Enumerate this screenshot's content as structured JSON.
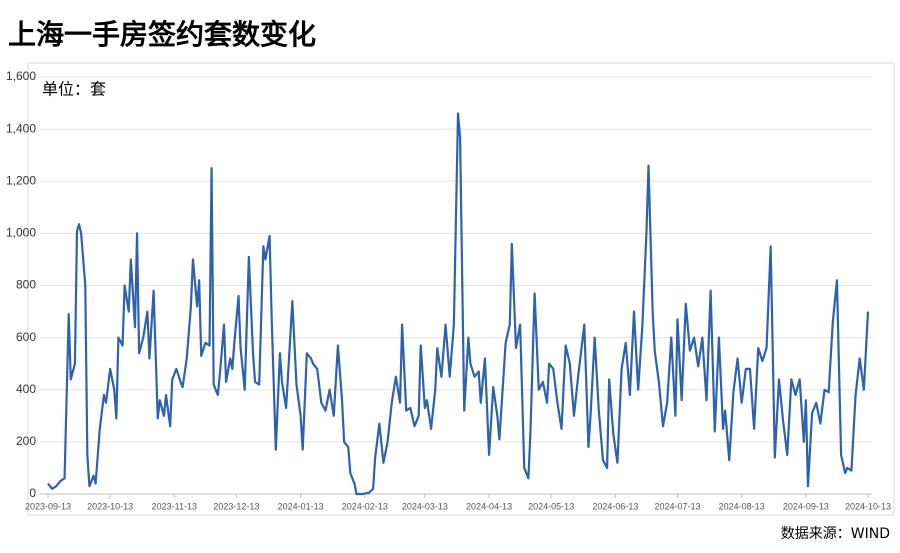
{
  "chart_data": {
    "type": "line",
    "title": "上海一手房签约套数变化",
    "unit_label": "单位：套",
    "source": "数据来源：WIND",
    "color": "#2e62ad",
    "grid": true,
    "ylim": [
      0,
      1600
    ],
    "yticks": [
      0,
      200,
      400,
      600,
      800,
      {
        "value": 1000,
        "label": "1,000"
      },
      {
        "value": 1200,
        "label": "1,200"
      },
      {
        "value": 1400,
        "label": "1,400"
      },
      {
        "value": 1600,
        "label": "1,600"
      }
    ],
    "xlim": [
      "2023-09-13",
      "2024-10-13"
    ],
    "xticks": [
      "2023-09-13",
      "2023-10-13",
      "2023-11-13",
      "2023-12-13",
      "2024-01-13",
      "2024-02-13",
      "2024-03-13",
      "2024-04-13",
      "2024-05-13",
      "2024-06-13",
      "2024-07-13",
      "2024-08-13",
      "2024-09-13",
      "2024-10-13"
    ],
    "x": [
      "2023-09-13",
      "2023-09-15",
      "2023-09-17",
      "2023-09-19",
      "2023-09-21",
      "2023-09-23",
      "2023-09-24",
      "2023-09-26",
      "2023-09-27",
      "2023-09-28",
      "2023-09-29",
      "2023-10-01",
      "2023-10-02",
      "2023-10-03",
      "2023-10-05",
      "2023-10-06",
      "2023-10-08",
      "2023-10-10",
      "2023-10-11",
      "2023-10-13",
      "2023-10-15",
      "2023-10-16",
      "2023-10-17",
      "2023-10-19",
      "2023-10-20",
      "2023-10-22",
      "2023-10-23",
      "2023-10-25",
      "2023-10-26",
      "2023-10-27",
      "2023-10-29",
      "2023-10-31",
      "2023-11-01",
      "2023-11-03",
      "2023-11-05",
      "2023-11-06",
      "2023-11-08",
      "2023-11-09",
      "2023-11-11",
      "2023-11-12",
      "2023-11-14",
      "2023-11-16",
      "2023-11-17",
      "2023-11-19",
      "2023-11-21",
      "2023-11-22",
      "2023-11-24",
      "2023-11-25",
      "2023-11-26",
      "2023-11-28",
      "2023-11-30",
      "2023-12-01",
      "2023-12-02",
      "2023-12-04",
      "2023-12-05",
      "2023-12-07",
      "2023-12-08",
      "2023-12-10",
      "2023-12-11",
      "2023-12-12",
      "2023-12-14",
      "2023-12-15",
      "2023-12-17",
      "2023-12-19",
      "2023-12-21",
      "2023-12-22",
      "2023-12-24",
      "2023-12-26",
      "2023-12-27",
      "2023-12-29",
      "2023-12-30",
      "2024-01-01",
      "2024-01-03",
      "2024-01-04",
      "2024-01-06",
      "2024-01-09",
      "2024-01-11",
      "2024-01-13",
      "2024-01-14",
      "2024-01-16",
      "2024-01-18",
      "2024-01-19",
      "2024-01-21",
      "2024-01-23",
      "2024-01-25",
      "2024-01-27",
      "2024-01-29",
      "2024-01-31",
      "2024-02-02",
      "2024-02-03",
      "2024-02-05",
      "2024-02-06",
      "2024-02-08",
      "2024-02-09",
      "2024-02-12",
      "2024-02-15",
      "2024-02-17",
      "2024-02-18",
      "2024-02-20",
      "2024-02-22",
      "2024-02-24",
      "2024-02-26",
      "2024-02-28",
      "2024-03-01",
      "2024-03-02",
      "2024-03-04",
      "2024-03-06",
      "2024-03-08",
      "2024-03-10",
      "2024-03-11",
      "2024-03-13",
      "2024-03-14",
      "2024-03-16",
      "2024-03-18",
      "2024-03-19",
      "2024-03-21",
      "2024-03-23",
      "2024-03-25",
      "2024-03-27",
      "2024-03-29",
      "2024-03-30",
      "2024-04-01",
      "2024-04-03",
      "2024-04-04",
      "2024-04-06",
      "2024-04-08",
      "2024-04-09",
      "2024-04-11",
      "2024-04-13",
      "2024-04-15",
      "2024-04-17",
      "2024-04-18",
      "2024-04-21",
      "2024-04-23",
      "2024-04-24",
      "2024-04-26",
      "2024-04-28",
      "2024-04-30",
      "2024-05-02",
      "2024-05-03",
      "2024-05-05",
      "2024-05-07",
      "2024-05-09",
      "2024-05-11",
      "2024-05-12",
      "2024-05-14",
      "2024-05-16",
      "2024-05-18",
      "2024-05-20",
      "2024-05-22",
      "2024-05-24",
      "2024-05-26",
      "2024-05-29",
      "2024-05-31",
      "2024-06-01",
      "2024-06-03",
      "2024-06-05",
      "2024-06-07",
      "2024-06-09",
      "2024-06-10",
      "2024-06-12",
      "2024-06-14",
      "2024-06-16",
      "2024-06-18",
      "2024-06-20",
      "2024-06-22",
      "2024-06-24",
      "2024-06-26",
      "2024-06-28",
      "2024-06-29",
      "2024-07-01",
      "2024-07-02",
      "2024-07-04",
      "2024-07-06",
      "2024-07-08",
      "2024-07-10",
      "2024-07-12",
      "2024-07-13",
      "2024-07-15",
      "2024-07-17",
      "2024-07-19",
      "2024-07-21",
      "2024-07-23",
      "2024-07-25",
      "2024-07-27",
      "2024-07-29",
      "2024-07-31",
      "2024-08-02",
      "2024-08-04",
      "2024-08-05",
      "2024-08-07",
      "2024-08-09",
      "2024-08-11",
      "2024-08-13",
      "2024-08-15",
      "2024-08-17",
      "2024-08-19",
      "2024-08-21",
      "2024-08-23",
      "2024-08-25",
      "2024-08-27",
      "2024-08-29",
      "2024-08-31",
      "2024-09-02",
      "2024-09-04",
      "2024-09-06",
      "2024-09-08",
      "2024-09-10",
      "2024-09-12",
      "2024-09-13",
      "2024-09-14",
      "2024-09-16",
      "2024-09-18",
      "2024-09-20",
      "2024-09-22",
      "2024-09-24",
      "2024-09-26",
      "2024-09-28",
      "2024-09-30",
      "2024-10-02",
      "2024-10-03",
      "2024-10-05",
      "2024-10-07",
      "2024-10-09",
      "2024-10-11",
      "2024-10-13"
    ],
    "values": [
      40,
      20,
      30,
      50,
      60,
      690,
      440,
      500,
      1010,
      1035,
      1000,
      800,
      150,
      30,
      70,
      40,
      250,
      380,
      350,
      480,
      400,
      290,
      600,
      570,
      800,
      700,
      900,
      640,
      1000,
      540,
      600,
      700,
      520,
      780,
      290,
      360,
      300,
      380,
      260,
      440,
      480,
      430,
      410,
      520,
      720,
      900,
      720,
      820,
      530,
      580,
      570,
      1250,
      420,
      380,
      460,
      650,
      430,
      520,
      480,
      580,
      760,
      560,
      400,
      910,
      540,
      430,
      420,
      950,
      900,
      990,
      680,
      170,
      540,
      430,
      330,
      740,
      420,
      300,
      170,
      540,
      520,
      500,
      480,
      350,
      320,
      400,
      300,
      570,
      360,
      200,
      180,
      80,
      40,
      0,
      0,
      5,
      20,
      140,
      270,
      120,
      200,
      350,
      450,
      350,
      650,
      320,
      330,
      260,
      300,
      570,
      330,
      360,
      250,
      400,
      560,
      450,
      650,
      450,
      650,
      1460,
      1370,
      320,
      600,
      500,
      450,
      470,
      350,
      520,
      150,
      410,
      300,
      210,
      580,
      650,
      960,
      560,
      650,
      100,
      60,
      240,
      770,
      400,
      430,
      350,
      500,
      480,
      350,
      250,
      570,
      500,
      300,
      450,
      650,
      180,
      300,
      600,
      320,
      130,
      100,
      440,
      230,
      120,
      480,
      580,
      380,
      700,
      400,
      640,
      1000,
      1260,
      700,
      550,
      430,
      260,
      350,
      600,
      300,
      670,
      360,
      730,
      550,
      600,
      490,
      600,
      360,
      780,
      240,
      600,
      250,
      320,
      130,
      390,
      520,
      350,
      480,
      480,
      250,
      560,
      510,
      560,
      950,
      140,
      440,
      280,
      150,
      440,
      380,
      440,
      200,
      360,
      30,
      310,
      350,
      270,
      400,
      390,
      660,
      820,
      150,
      80,
      100,
      90,
      380,
      520,
      400,
      700
    ]
  }
}
